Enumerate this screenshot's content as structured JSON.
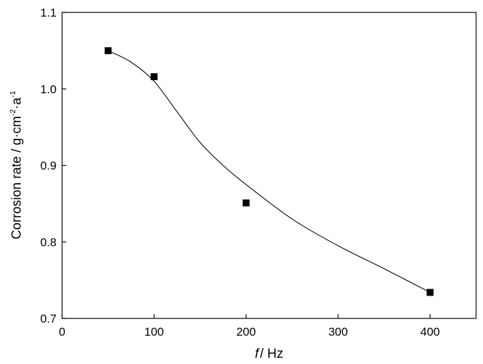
{
  "chart_data": {
    "type": "scatter",
    "xlabel_italic": "f",
    "xlabel_rest": "/ Hz",
    "ylabel_main": "Corrosion rate / g·cm",
    "ylabel_exp1": "-2",
    "ylabel_mid": "·a",
    "ylabel_exp2": "-1",
    "xlim": [
      0,
      450
    ],
    "ylim": [
      0.7,
      1.1
    ],
    "x_ticks": [
      0,
      100,
      200,
      300,
      400
    ],
    "x_tick_labels": [
      "0",
      "100",
      "200",
      "300",
      "400"
    ],
    "y_ticks": [
      0.7,
      0.8,
      0.9,
      1.0,
      1.1
    ],
    "y_tick_labels": [
      "0.7",
      "0.8",
      "0.9",
      "1.0",
      "1.1"
    ],
    "series": [
      {
        "marker": "square",
        "color": "#000000",
        "x": [
          50,
          100,
          200,
          400
        ],
        "y": [
          1.05,
          1.016,
          0.851,
          0.734
        ]
      }
    ],
    "fit_curve": {
      "color": "#000000",
      "x": [
        50,
        75,
        100,
        125,
        150,
        175,
        200,
        250,
        300,
        350,
        400
      ],
      "y": [
        1.05,
        1.035,
        1.01,
        0.97,
        0.93,
        0.9,
        0.875,
        0.83,
        0.795,
        0.765,
        0.734
      ]
    },
    "grid": false,
    "legend": "none"
  }
}
